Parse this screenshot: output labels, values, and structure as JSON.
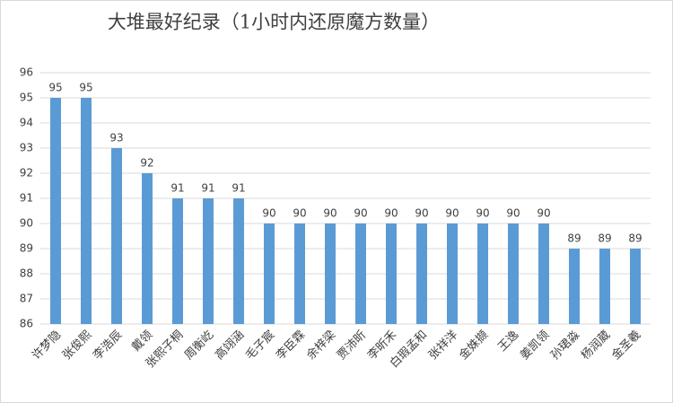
{
  "chart_data": {
    "type": "bar",
    "title": "大堆最好纪录（1小时内还原魔方数量）",
    "categories": [
      "许梦隐",
      "张俊熙",
      "李浩辰",
      "戴领",
      "张熙子桐",
      "周衡屹",
      "高翊涵",
      "毛子宸",
      "李臣霖",
      "余梓梁",
      "贾沛昕",
      "李昕禾",
      "白瑕孟和",
      "张祥洋",
      "金姝撷",
      "王逸",
      "姜凯领",
      "孙珺淼",
      "杨润葳",
      "金圣羲"
    ],
    "values": [
      95,
      95,
      93,
      92,
      91,
      91,
      91,
      90,
      90,
      90,
      90,
      90,
      90,
      90,
      90,
      90,
      90,
      89,
      89,
      89
    ],
    "color": "#5b9bd5",
    "ylim": [
      86,
      96
    ],
    "yticks": [
      86,
      87,
      88,
      89,
      90,
      91,
      92,
      93,
      94,
      95,
      96
    ],
    "grid": true,
    "data_labels": true
  }
}
